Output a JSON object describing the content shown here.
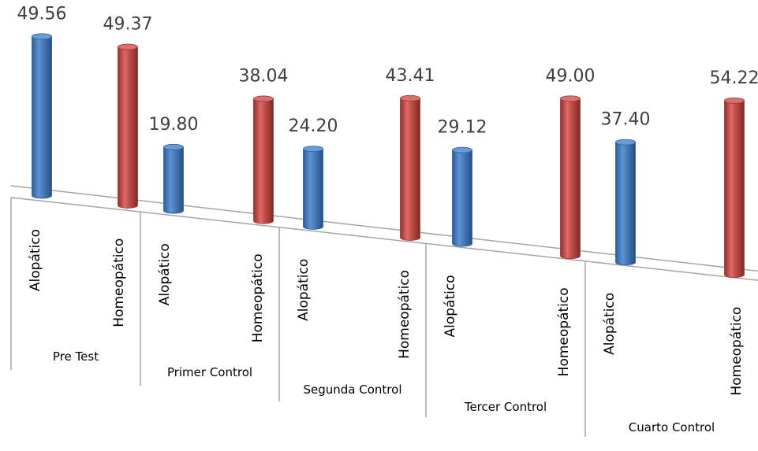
{
  "chart_data": {
    "type": "bar",
    "title": "",
    "xlabel": "",
    "ylabel": "",
    "groups": [
      {
        "label": "Pre Test",
        "bars": [
          {
            "label": "Alopático",
            "value": 49.56,
            "series": "Alopático"
          },
          {
            "label": "Homeopático",
            "value": 49.37,
            "series": "Homeopático"
          }
        ]
      },
      {
        "label": "Primer Control",
        "bars": [
          {
            "label": "Alopático",
            "value": 19.8,
            "series": "Alopático"
          },
          {
            "label": "Homeopático",
            "value": 38.04,
            "series": "Homeopático"
          }
        ]
      },
      {
        "label": "Segunda Control",
        "bars": [
          {
            "label": "Alopático",
            "value": 24.2,
            "series": "Alopático"
          },
          {
            "label": "Homeopático",
            "value": 43.41,
            "series": "Homeopático"
          }
        ]
      },
      {
        "label": "Tercer Control",
        "bars": [
          {
            "label": "Alopático",
            "value": 29.12,
            "series": "Alopático"
          },
          {
            "label": "Homeopático",
            "value": 49.0,
            "series": "Homeopático"
          }
        ]
      },
      {
        "label": "Cuarto Control",
        "bars": [
          {
            "label": "Alopático",
            "value": 37.4,
            "series": "Alopático"
          },
          {
            "label": "Homeopático",
            "value": 54.22,
            "series": "Homeopático"
          }
        ]
      }
    ],
    "value_labels": [
      "49.56",
      "49.37",
      "19.80",
      "38.04",
      "24.20",
      "43.41",
      "29.12",
      "49.00",
      "37.40",
      "54.22"
    ],
    "colors": {
      "Alopático": "#4a7ebb",
      "Homeopático": "#c0504d"
    },
    "style": "3d-cylinder",
    "grid": false,
    "legend": "none"
  }
}
